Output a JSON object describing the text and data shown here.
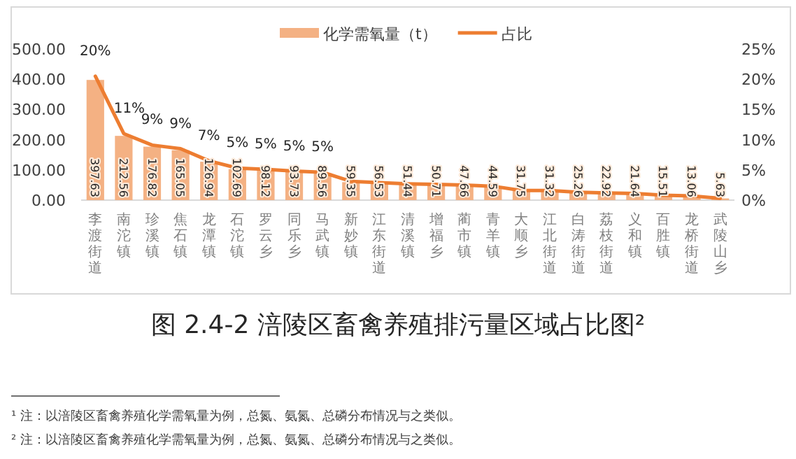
{
  "chart_data": {
    "type": "bar",
    "title": "图 2.4-2 涪陵区畜禽养殖排污量区域占比图²",
    "categories": [
      "李渡街道",
      "南沱镇",
      "珍溪镇",
      "焦石镇",
      "龙潭镇",
      "石沱镇",
      "罗云乡",
      "同乐乡",
      "马武镇",
      "新妙镇",
      "江东街道",
      "清溪镇",
      "增福乡",
      "蔺市镇",
      "青羊镇",
      "大顺乡",
      "江北街道",
      "白涛街道",
      "荔枝街道",
      "义和镇",
      "百胜镇",
      "龙桥街道",
      "武陵山乡"
    ],
    "series": [
      {
        "name": "化学需氧量（t）",
        "color": "#f4b183",
        "values": [
          397.63,
          212.56,
          176.82,
          165.05,
          126.94,
          102.69,
          98.12,
          93.73,
          89.56,
          59.35,
          56.53,
          51.44,
          50.71,
          47.66,
          44.59,
          31.75,
          31.32,
          25.26,
          22.92,
          21.64,
          15.51,
          13.06,
          5.63
        ],
        "value_labels": [
          "397.63",
          "212.56",
          "176.82",
          "165.05",
          "126.94",
          "102.69",
          "98.12",
          "93.73",
          "89.56",
          "59.35",
          "56.53",
          "51.44",
          "50.71",
          "47.66",
          "44.59",
          "31.75",
          "31.32",
          "25.26",
          "22.92",
          "21.64",
          "15.51",
          "13.06",
          "5.63"
        ]
      },
      {
        "name": "占比",
        "type": "line",
        "axis": "y2",
        "color": "#ed7d31",
        "values": [
          20.5,
          11.0,
          9.1,
          8.5,
          6.5,
          5.3,
          5.1,
          4.8,
          4.6,
          3.1,
          2.9,
          2.7,
          2.6,
          2.5,
          2.3,
          1.6,
          1.6,
          1.3,
          1.2,
          1.1,
          0.8,
          0.7,
          0.3
        ],
        "value_labels": [
          "20%",
          "11%",
          "9%",
          "9%",
          "7%",
          "5%",
          "5%",
          "5%",
          "5%",
          null,
          null,
          null,
          null,
          null,
          null,
          null,
          null,
          null,
          null,
          null,
          null,
          null,
          null
        ]
      }
    ],
    "ylim": [
      0,
      500
    ],
    "yticks": [
      {
        "value": 0,
        "label": "0.00"
      },
      {
        "value": 100,
        "label": "100.00"
      },
      {
        "value": 200,
        "label": "200.00"
      },
      {
        "value": 300,
        "label": "300.00"
      },
      {
        "value": 400,
        "label": "400.00"
      },
      {
        "value": 500,
        "label": "500.00"
      }
    ],
    "y2lim": [
      0,
      25
    ],
    "y2ticks": [
      {
        "value": 0,
        "label": "0%"
      },
      {
        "value": 5,
        "label": "5%"
      },
      {
        "value": 10,
        "label": "10%"
      },
      {
        "value": 15,
        "label": "15%"
      },
      {
        "value": 20,
        "label": "20%"
      },
      {
        "value": 25,
        "label": "25%"
      }
    ],
    "legend": "top",
    "marker": "none",
    "annotations": [
      "¹ 注：以涪陵区畜禽养殖化学需氧量为例，总氮、氨氮、总磷分布情况与之类似。",
      "² 注：以涪陵区畜禽养殖化学需氧量为例，总氮、氨氮、总磷分布情况与之类似。"
    ]
  }
}
